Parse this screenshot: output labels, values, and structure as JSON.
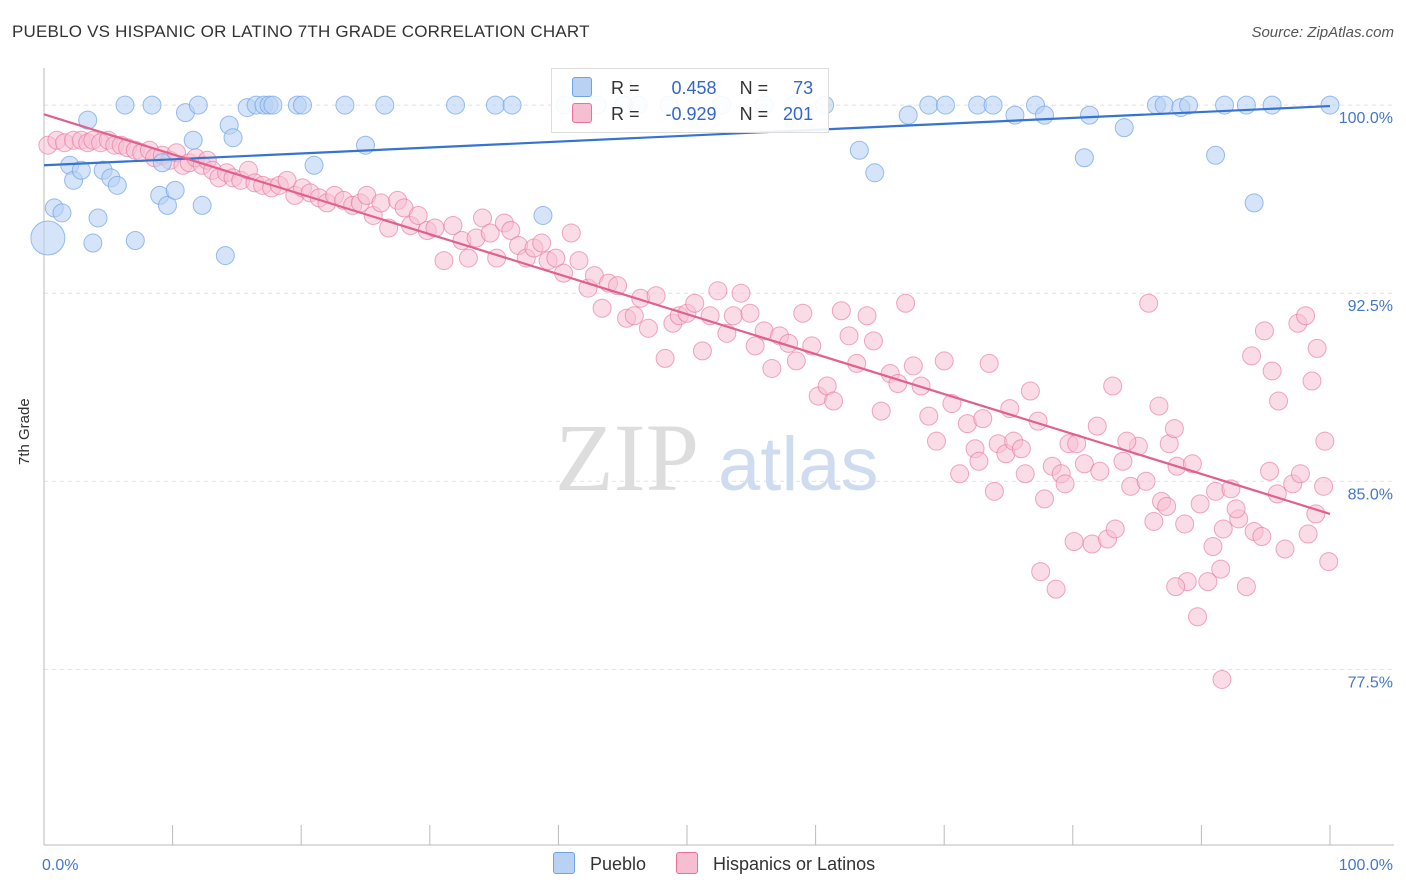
{
  "title": "PUEBLO VS HISPANIC OR LATINO 7TH GRADE CORRELATION CHART",
  "source": "Source: ZipAtlas.com",
  "watermark": {
    "zip": "ZIP",
    "atlas": "atlas"
  },
  "legend": {
    "r_label": "R =",
    "n_label": "N =",
    "series": [
      {
        "name": "Pueblo",
        "r": "0.458",
        "n": "73",
        "color": "#6fa3e8",
        "fill": "#b9d2f4"
      },
      {
        "name": "Hispanics or Latinos",
        "r": "-0.929",
        "n": "201",
        "color": "#e8709a",
        "fill": "#f6bfd1"
      }
    ]
  },
  "chart_data": {
    "type": "scatter",
    "title": "PUEBLO VS HISPANIC OR LATINO 7TH GRADE CORRELATION CHART",
    "xlabel": "",
    "ylabel": "7th Grade",
    "xlim": [
      0,
      100
    ],
    "ylim": [
      70.5,
      101
    ],
    "x_tick_labels": [
      "0.0%",
      "100.0%"
    ],
    "y_ticks": [
      77.5,
      85.0,
      92.5,
      100.0
    ],
    "y_tick_labels": [
      "77.5%",
      "85.0%",
      "92.5%",
      "100.0%"
    ],
    "grid": true,
    "legend_position": "top-center",
    "series": [
      {
        "name": "Pueblo",
        "color": "#6fa3e8",
        "trend": {
          "x": [
            0,
            100
          ],
          "y": [
            97.6,
            99.96
          ]
        },
        "points": [
          [
            0.3,
            94.7
          ],
          [
            0.8,
            95.9
          ],
          [
            1.4,
            95.7
          ],
          [
            2.0,
            97.6
          ],
          [
            2.3,
            97.0
          ],
          [
            2.9,
            97.4
          ],
          [
            3.4,
            99.4
          ],
          [
            3.8,
            94.5
          ],
          [
            4.2,
            95.5
          ],
          [
            4.6,
            97.4
          ],
          [
            5.2,
            97.1
          ],
          [
            5.7,
            96.8
          ],
          [
            6.3,
            100.0
          ],
          [
            7.1,
            94.6
          ],
          [
            8.4,
            100.0
          ],
          [
            9.0,
            96.4
          ],
          [
            9.2,
            97.7
          ],
          [
            9.6,
            96.0
          ],
          [
            10.2,
            96.6
          ],
          [
            11.0,
            99.7
          ],
          [
            11.6,
            98.6
          ],
          [
            12.0,
            100.0
          ],
          [
            12.3,
            96.0
          ],
          [
            14.1,
            94.0
          ],
          [
            14.4,
            99.2
          ],
          [
            14.7,
            98.7
          ],
          [
            15.8,
            99.9
          ],
          [
            16.5,
            100.0
          ],
          [
            17.1,
            100.0
          ],
          [
            17.5,
            100.0
          ],
          [
            17.8,
            100.0
          ],
          [
            19.7,
            100.0
          ],
          [
            20.1,
            100.0
          ],
          [
            21.0,
            97.6
          ],
          [
            23.4,
            100.0
          ],
          [
            25.0,
            98.4
          ],
          [
            26.5,
            100.0
          ],
          [
            32.0,
            100.0
          ],
          [
            35.1,
            100.0
          ],
          [
            36.4,
            100.0
          ],
          [
            38.8,
            95.6
          ],
          [
            40.5,
            100.0
          ],
          [
            43.0,
            100.0
          ],
          [
            45.1,
            100.0
          ],
          [
            46.2,
            100.0
          ],
          [
            48.6,
            100.0
          ],
          [
            52.7,
            100.0
          ],
          [
            56.0,
            100.0
          ],
          [
            58.3,
            100.0
          ],
          [
            60.7,
            100.0
          ],
          [
            63.4,
            98.2
          ],
          [
            64.6,
            97.3
          ],
          [
            67.2,
            99.6
          ],
          [
            68.8,
            100.0
          ],
          [
            70.1,
            100.0
          ],
          [
            72.6,
            100.0
          ],
          [
            73.8,
            100.0
          ],
          [
            75.5,
            99.6
          ],
          [
            77.1,
            100.0
          ],
          [
            77.8,
            99.6
          ],
          [
            80.9,
            97.9
          ],
          [
            81.3,
            99.6
          ],
          [
            84.0,
            99.1
          ],
          [
            86.5,
            100.0
          ],
          [
            87.1,
            100.0
          ],
          [
            88.4,
            99.9
          ],
          [
            89.0,
            100.0
          ],
          [
            91.1,
            98.0
          ],
          [
            91.8,
            100.0
          ],
          [
            93.5,
            100.0
          ],
          [
            94.1,
            96.1
          ],
          [
            95.5,
            100.0
          ],
          [
            100.0,
            100.0
          ]
        ]
      },
      {
        "name": "Hispanics or Latinos",
        "color": "#e8709a",
        "trend": {
          "x": [
            0,
            100
          ],
          "y": [
            99.63,
            83.7
          ]
        },
        "points": [
          [
            0.3,
            98.4
          ],
          [
            1.0,
            98.6
          ],
          [
            1.6,
            98.5
          ],
          [
            2.3,
            98.6
          ],
          [
            2.9,
            98.6
          ],
          [
            3.4,
            98.5
          ],
          [
            3.8,
            98.6
          ],
          [
            4.4,
            98.5
          ],
          [
            5.0,
            98.6
          ],
          [
            5.5,
            98.4
          ],
          [
            6.0,
            98.4
          ],
          [
            6.5,
            98.3
          ],
          [
            7.1,
            98.2
          ],
          [
            7.6,
            98.1
          ],
          [
            8.2,
            98.2
          ],
          [
            8.6,
            97.9
          ],
          [
            9.2,
            98.0
          ],
          [
            9.8,
            97.8
          ],
          [
            10.3,
            98.1
          ],
          [
            10.8,
            97.6
          ],
          [
            11.3,
            97.7
          ],
          [
            11.8,
            97.9
          ],
          [
            12.3,
            97.6
          ],
          [
            12.7,
            97.8
          ],
          [
            13.1,
            97.4
          ],
          [
            13.6,
            97.1
          ],
          [
            14.2,
            97.3
          ],
          [
            14.7,
            97.1
          ],
          [
            15.3,
            97.0
          ],
          [
            15.9,
            97.4
          ],
          [
            16.4,
            96.9
          ],
          [
            17.0,
            96.8
          ],
          [
            17.7,
            96.7
          ],
          [
            18.3,
            96.8
          ],
          [
            18.9,
            97.0
          ],
          [
            19.5,
            96.4
          ],
          [
            20.1,
            96.7
          ],
          [
            20.7,
            96.5
          ],
          [
            21.4,
            96.3
          ],
          [
            22.0,
            96.1
          ],
          [
            22.6,
            96.4
          ],
          [
            23.3,
            96.2
          ],
          [
            24.0,
            96.0
          ],
          [
            24.6,
            96.1
          ],
          [
            25.1,
            96.4
          ],
          [
            25.6,
            95.6
          ],
          [
            26.2,
            96.1
          ],
          [
            26.8,
            95.1
          ],
          [
            27.5,
            96.2
          ],
          [
            28.0,
            95.9
          ],
          [
            28.5,
            95.2
          ],
          [
            29.1,
            95.6
          ],
          [
            29.8,
            95.0
          ],
          [
            30.4,
            95.1
          ],
          [
            31.1,
            93.8
          ],
          [
            31.8,
            95.2
          ],
          [
            32.5,
            94.6
          ],
          [
            33.0,
            93.9
          ],
          [
            33.6,
            94.7
          ],
          [
            34.1,
            95.5
          ],
          [
            34.7,
            94.9
          ],
          [
            35.2,
            93.9
          ],
          [
            35.8,
            95.3
          ],
          [
            36.3,
            95.0
          ],
          [
            36.9,
            94.4
          ],
          [
            37.5,
            93.9
          ],
          [
            38.1,
            94.3
          ],
          [
            38.7,
            94.5
          ],
          [
            39.2,
            93.8
          ],
          [
            39.8,
            93.9
          ],
          [
            40.4,
            93.3
          ],
          [
            41.0,
            94.9
          ],
          [
            41.6,
            93.8
          ],
          [
            42.3,
            92.7
          ],
          [
            42.8,
            93.2
          ],
          [
            43.4,
            91.9
          ],
          [
            43.9,
            92.9
          ],
          [
            44.6,
            92.8
          ],
          [
            45.3,
            91.5
          ],
          [
            45.9,
            91.6
          ],
          [
            46.4,
            92.3
          ],
          [
            47.0,
            91.1
          ],
          [
            47.6,
            92.4
          ],
          [
            48.3,
            89.9
          ],
          [
            48.9,
            91.3
          ],
          [
            49.4,
            91.6
          ],
          [
            50.0,
            91.7
          ],
          [
            50.6,
            92.1
          ],
          [
            51.2,
            90.2
          ],
          [
            51.8,
            91.6
          ],
          [
            52.4,
            92.6
          ],
          [
            53.1,
            90.9
          ],
          [
            53.6,
            91.6
          ],
          [
            54.2,
            92.5
          ],
          [
            54.9,
            91.7
          ],
          [
            55.3,
            90.4
          ],
          [
            56.0,
            91.0
          ],
          [
            56.6,
            89.5
          ],
          [
            57.2,
            90.8
          ],
          [
            57.9,
            90.5
          ],
          [
            58.5,
            89.8
          ],
          [
            59.0,
            91.7
          ],
          [
            59.7,
            90.4
          ],
          [
            60.2,
            88.4
          ],
          [
            60.9,
            88.8
          ],
          [
            61.4,
            88.2
          ],
          [
            62.0,
            91.8
          ],
          [
            62.6,
            90.8
          ],
          [
            63.2,
            89.7
          ],
          [
            64.0,
            91.6
          ],
          [
            64.5,
            90.6
          ],
          [
            65.1,
            87.8
          ],
          [
            65.8,
            89.3
          ],
          [
            66.4,
            88.9
          ],
          [
            67.0,
            92.1
          ],
          [
            67.6,
            89.6
          ],
          [
            68.2,
            88.8
          ],
          [
            68.8,
            87.6
          ],
          [
            69.4,
            86.6
          ],
          [
            70.0,
            89.8
          ],
          [
            70.6,
            88.1
          ],
          [
            71.2,
            85.3
          ],
          [
            71.8,
            87.3
          ],
          [
            72.4,
            86.3
          ],
          [
            73.0,
            87.5
          ],
          [
            73.5,
            89.7
          ],
          [
            74.2,
            86.5
          ],
          [
            74.8,
            86.1
          ],
          [
            75.4,
            86.6
          ],
          [
            76.0,
            86.3
          ],
          [
            76.7,
            88.6
          ],
          [
            77.3,
            87.4
          ],
          [
            77.8,
            84.3
          ],
          [
            78.4,
            85.6
          ],
          [
            79.1,
            85.3
          ],
          [
            79.7,
            86.5
          ],
          [
            80.3,
            86.5
          ],
          [
            80.9,
            85.7
          ],
          [
            81.5,
            82.5
          ],
          [
            82.1,
            85.4
          ],
          [
            82.7,
            82.7
          ],
          [
            83.3,
            83.1
          ],
          [
            83.9,
            85.8
          ],
          [
            84.5,
            84.8
          ],
          [
            85.1,
            86.4
          ],
          [
            85.7,
            85.0
          ],
          [
            86.3,
            83.4
          ],
          [
            86.9,
            84.2
          ],
          [
            87.5,
            86.5
          ],
          [
            88.1,
            85.6
          ],
          [
            88.7,
            83.3
          ],
          [
            89.3,
            85.7
          ],
          [
            89.9,
            84.1
          ],
          [
            90.5,
            81.0
          ],
          [
            91.1,
            84.6
          ],
          [
            91.7,
            83.1
          ],
          [
            92.3,
            84.7
          ],
          [
            92.9,
            83.5
          ],
          [
            93.5,
            80.8
          ],
          [
            94.1,
            83.0
          ],
          [
            94.7,
            82.8
          ],
          [
            95.3,
            85.4
          ],
          [
            95.9,
            84.5
          ],
          [
            96.5,
            82.3
          ],
          [
            97.1,
            84.9
          ],
          [
            97.7,
            85.3
          ],
          [
            98.3,
            82.9
          ],
          [
            98.9,
            83.7
          ],
          [
            99.5,
            84.8
          ],
          [
            99.9,
            81.8
          ],
          [
            96.0,
            88.2
          ],
          [
            97.5,
            91.3
          ],
          [
            98.1,
            91.6
          ],
          [
            99.0,
            90.3
          ],
          [
            99.6,
            86.6
          ],
          [
            98.6,
            89.0
          ],
          [
            95.5,
            89.4
          ],
          [
            94.9,
            91.0
          ],
          [
            93.9,
            90.0
          ],
          [
            92.7,
            83.9
          ],
          [
            91.5,
            81.5
          ],
          [
            90.9,
            82.4
          ],
          [
            89.7,
            79.6
          ],
          [
            88.9,
            81.0
          ],
          [
            87.9,
            87.1
          ],
          [
            87.3,
            84.0
          ],
          [
            86.7,
            88.0
          ],
          [
            85.9,
            92.1
          ],
          [
            84.2,
            86.6
          ],
          [
            83.1,
            88.8
          ],
          [
            81.9,
            87.2
          ],
          [
            80.1,
            82.6
          ],
          [
            79.4,
            84.9
          ],
          [
            78.7,
            80.7
          ],
          [
            77.5,
            81.4
          ],
          [
            76.3,
            85.3
          ],
          [
            75.1,
            87.9
          ],
          [
            73.9,
            84.6
          ],
          [
            72.7,
            85.8
          ],
          [
            91.6,
            77.1
          ],
          [
            88.0,
            80.8
          ]
        ]
      }
    ]
  }
}
